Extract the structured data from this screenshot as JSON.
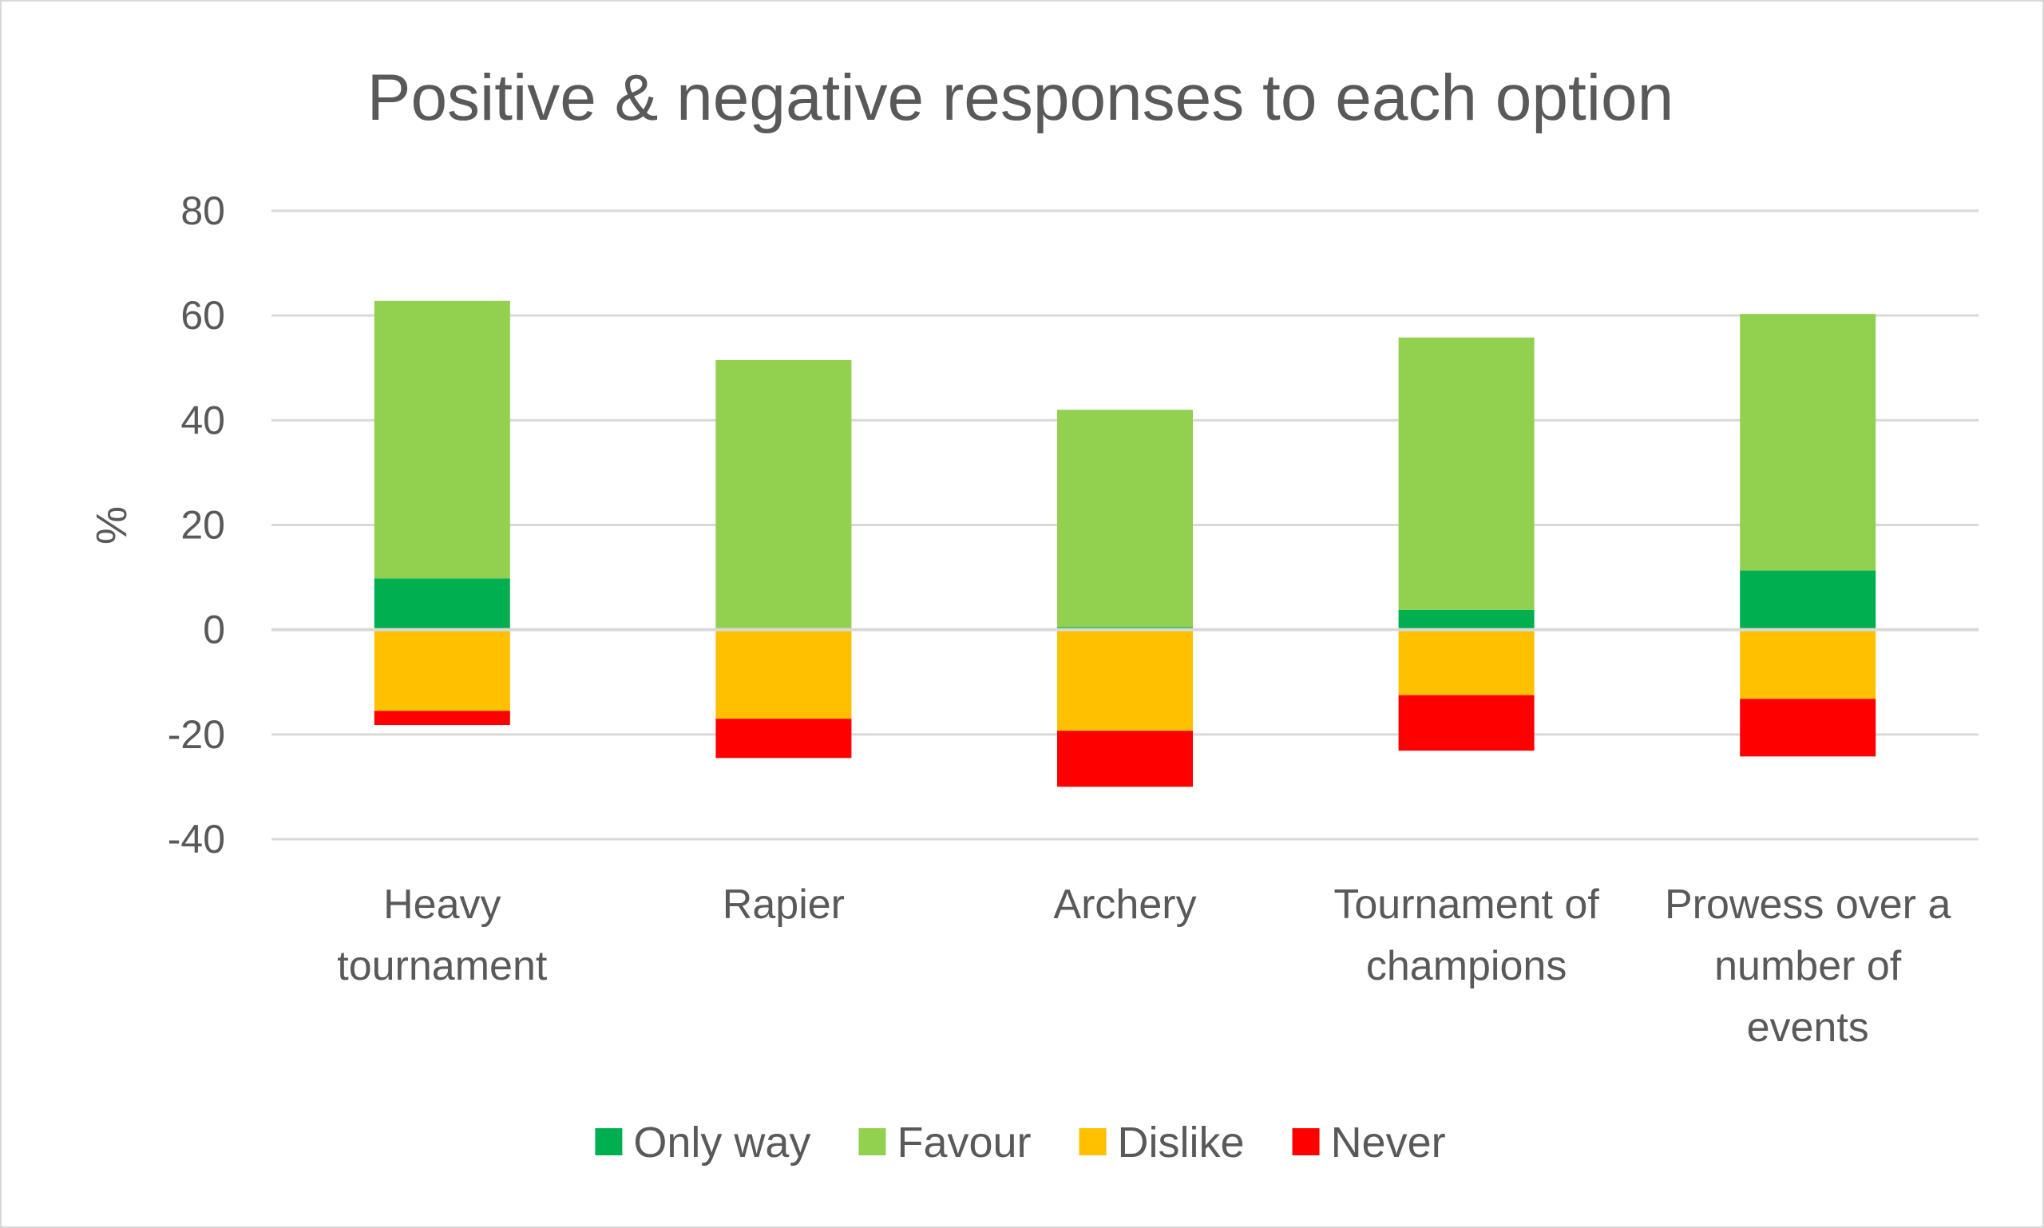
{
  "chart_data": {
    "type": "bar",
    "stacked": true,
    "title": "Positive & negative responses to each option",
    "xlabel": "",
    "ylabel": "%",
    "ylim": [
      -40,
      80
    ],
    "yticks": [
      80,
      60,
      40,
      20,
      0,
      -20,
      -40
    ],
    "grid": true,
    "legend_position": "bottom",
    "categories": [
      [
        "Heavy",
        "tournament"
      ],
      [
        "Rapier"
      ],
      [
        "Archery"
      ],
      [
        "Tournament of",
        "champions"
      ],
      [
        "Prowess over a",
        "number of",
        "events"
      ]
    ],
    "series": [
      {
        "name": "Only way",
        "color": "#00b050",
        "values": [
          9.8,
          0,
          0.5,
          3.8,
          11.3
        ]
      },
      {
        "name": "Favour",
        "color": "#92d050",
        "values": [
          53,
          51.5,
          41.5,
          52,
          49
        ]
      },
      {
        "name": "Dislike",
        "color": "#ffc000",
        "values": [
          -15.5,
          -17,
          -19.3,
          -12.5,
          -13.2
        ]
      },
      {
        "name": "Never",
        "color": "#ff0000",
        "values": [
          -2.7,
          -7.5,
          -10.7,
          -10.6,
          -11
        ]
      }
    ]
  }
}
